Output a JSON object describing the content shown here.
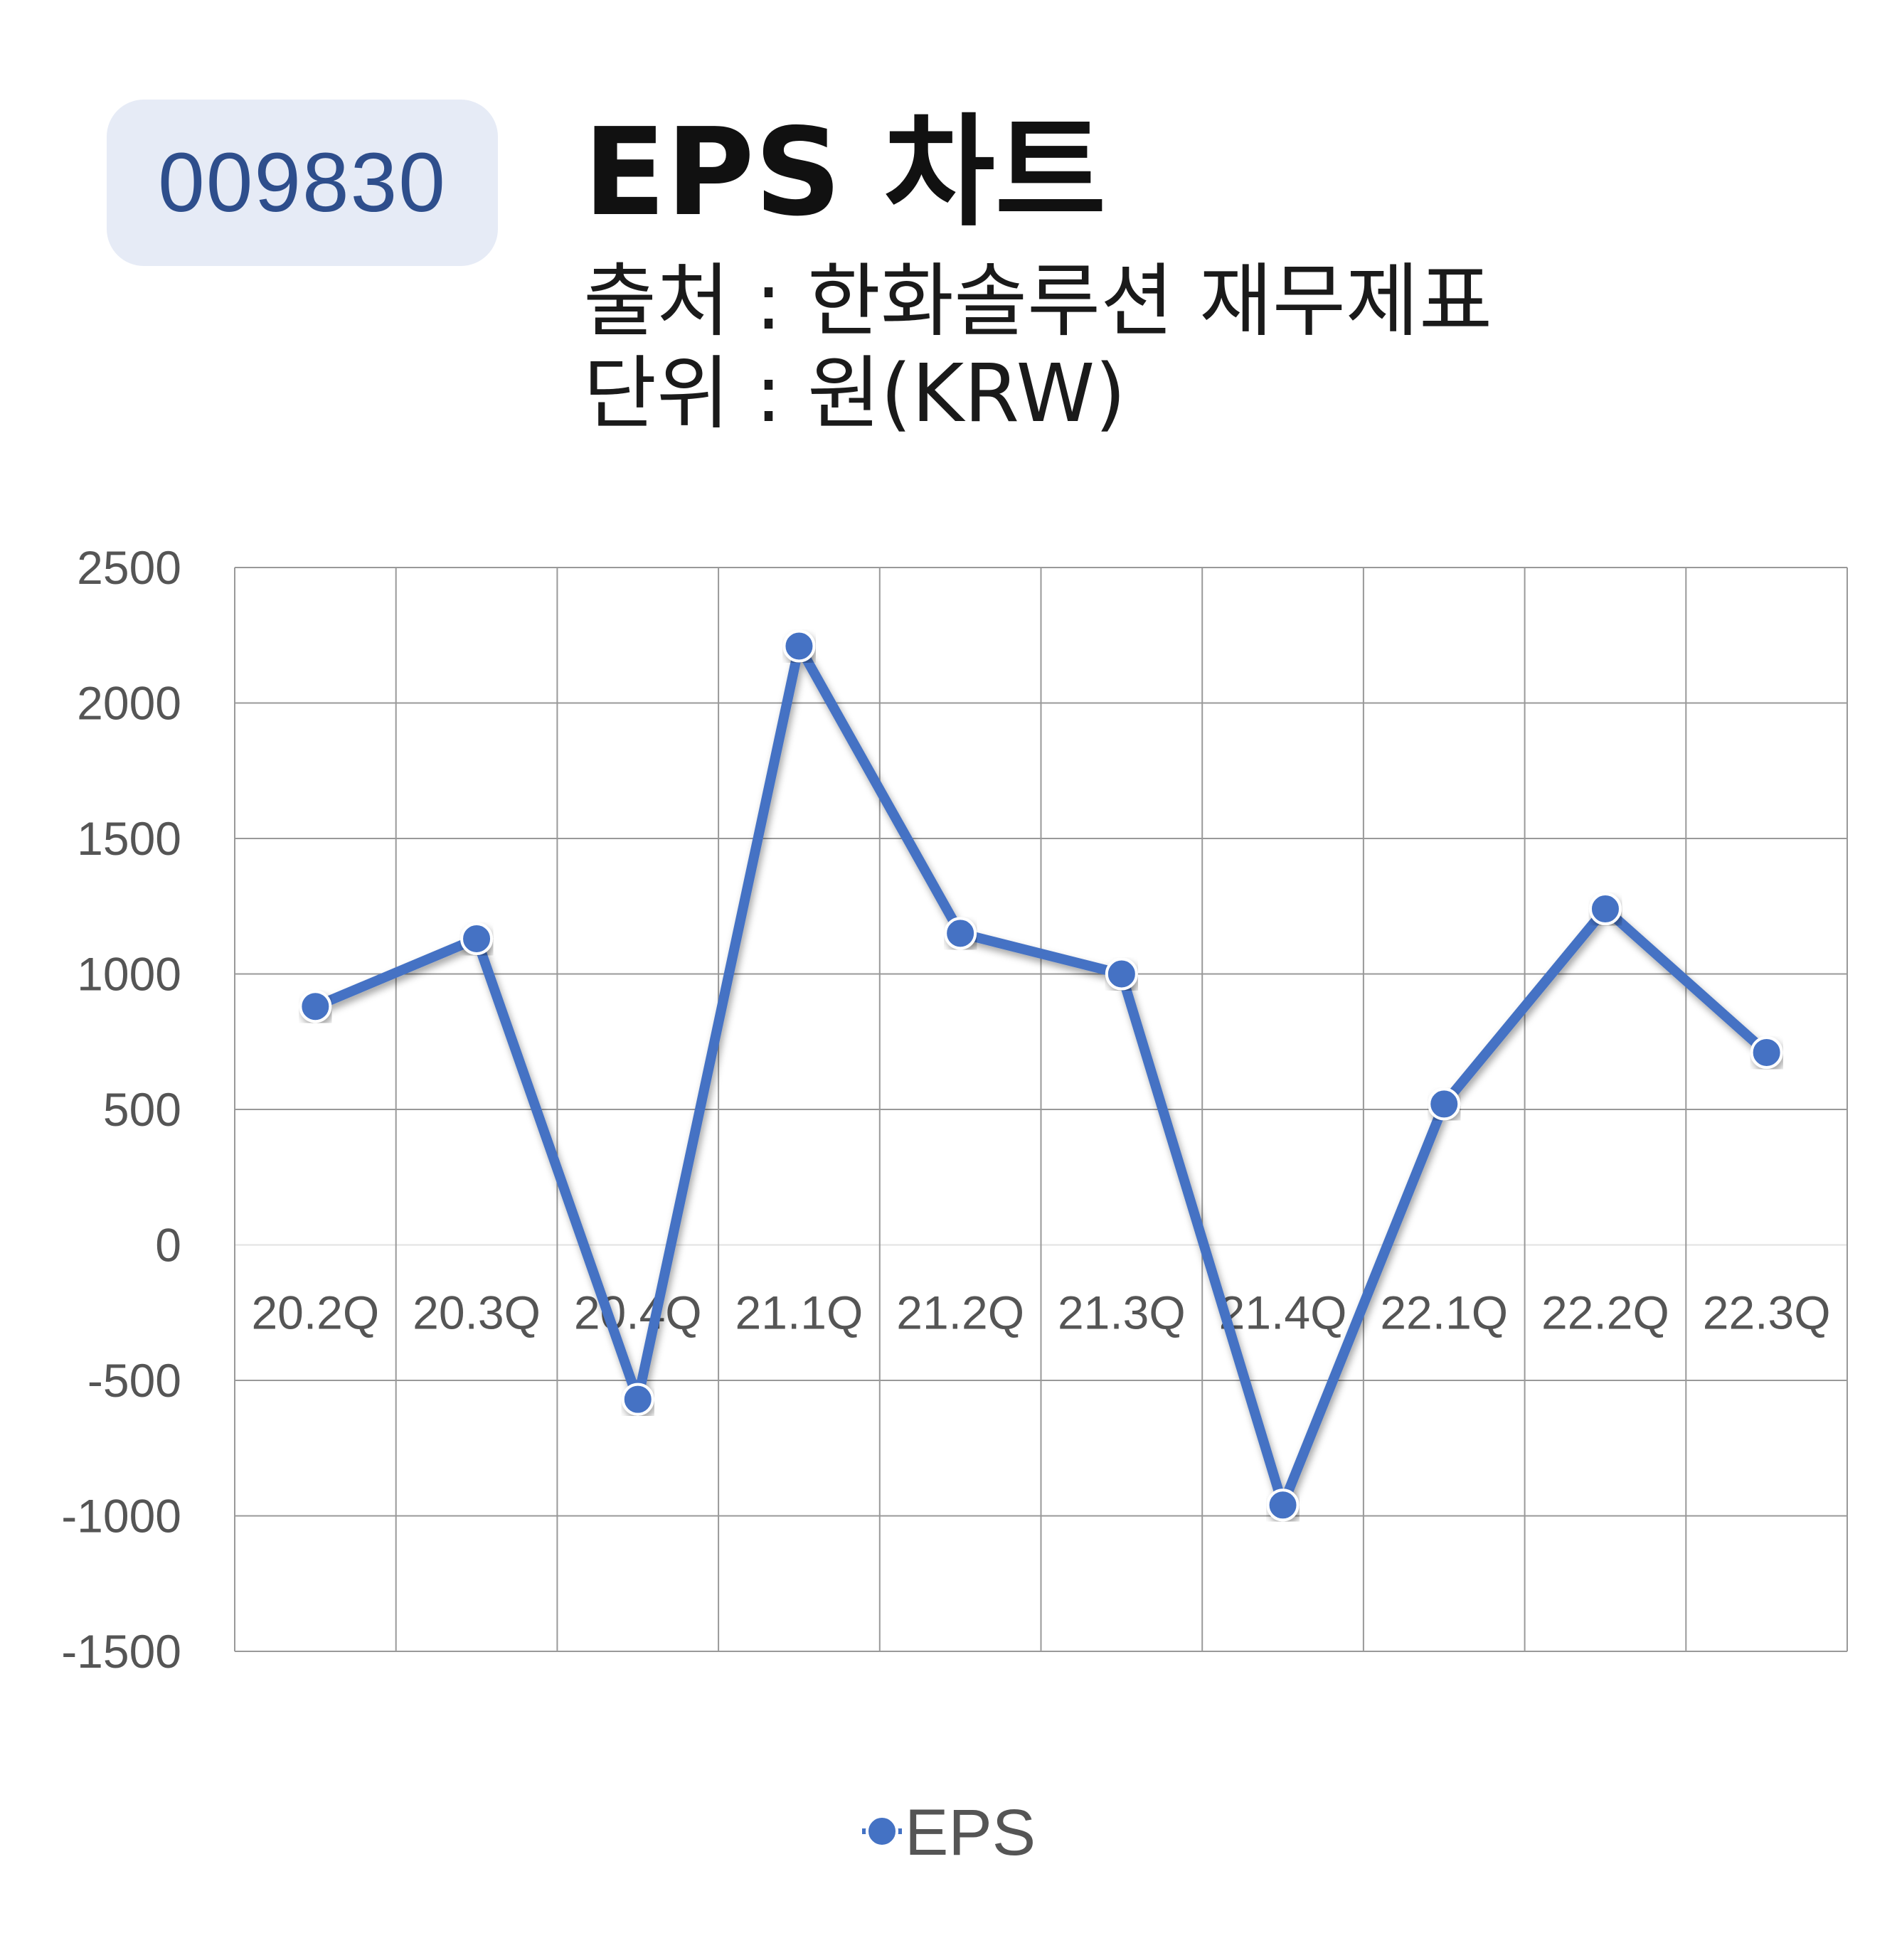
{
  "header": {
    "ticker": "009830",
    "title": "EPS 차트",
    "source": "출처 : 한화솔루션 재무제표",
    "unit": "단위 : 원(KRW)"
  },
  "colors": {
    "series": "#4472c4",
    "badge_bg": "#e6ebf6",
    "badge_text": "#2e4e8c",
    "grid": "#999999"
  },
  "chart_data": {
    "type": "line",
    "title": "EPS 차트",
    "xlabel": "",
    "ylabel": "",
    "categories": [
      "20.2Q",
      "20.3Q",
      "20.4Q",
      "21.1Q",
      "21.2Q",
      "21.3Q",
      "21.4Q",
      "22.1Q",
      "22.2Q",
      "22.3Q"
    ],
    "series": [
      {
        "name": "EPS",
        "values": [
          880,
          1130,
          -570,
          2210,
          1150,
          1000,
          -960,
          520,
          1240,
          710
        ]
      }
    ],
    "ylim": [
      -1500,
      2500
    ],
    "yticks": [
      2500,
      2000,
      1500,
      1000,
      500,
      0,
      -500,
      -1000,
      -1500
    ],
    "grid": true,
    "legend_position": "bottom-center"
  }
}
